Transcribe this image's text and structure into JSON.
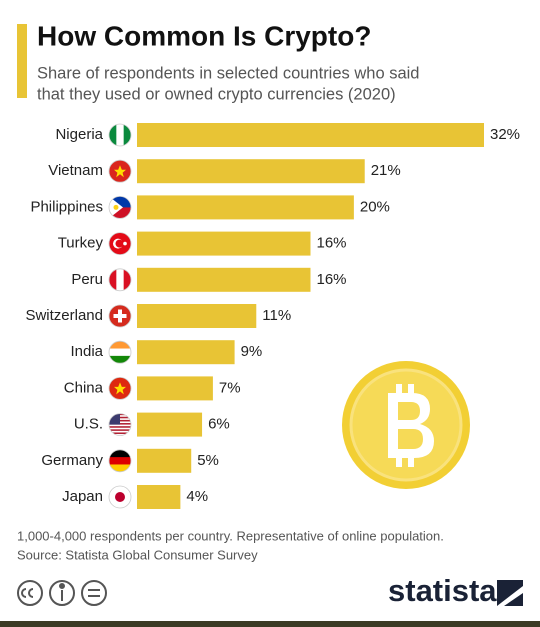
{
  "chart_data": {
    "type": "bar",
    "orientation": "horizontal",
    "title": "How Common Is Crypto?",
    "subtitle": [
      "Share of respondents in selected countries who said",
      "that they used or owned crypto currencies (2020)"
    ],
    "categories": [
      "Nigeria",
      "Vietnam",
      "Philippines",
      "Turkey",
      "Peru",
      "Switzerland",
      "India",
      "China",
      "U.S.",
      "Germany",
      "Japan"
    ],
    "values": [
      32,
      21,
      20,
      16,
      16,
      11,
      9,
      7,
      6,
      5,
      4
    ],
    "value_labels": [
      "32%",
      "21%",
      "20%",
      "16%",
      "16%",
      "11%",
      "9%",
      "7%",
      "6%",
      "5%",
      "4%"
    ],
    "color": "#e8c435",
    "notes": [
      "1,000-4,000 respondents per country. Representative of online population.",
      "Source: Statista Global Consumer Survey"
    ]
  },
  "brand": "statista"
}
